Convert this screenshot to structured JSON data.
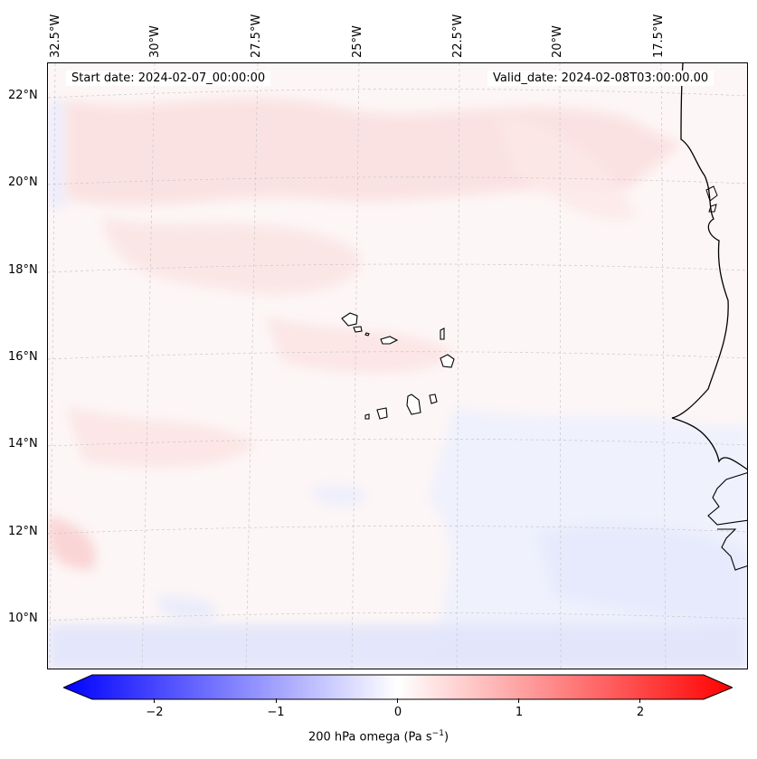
{
  "map": {
    "start_date_label": "Start date: 2024-02-07_00:00:00",
    "valid_date_label": "Valid_date: 2024-02-08T03:00:00.00",
    "lon_ticks": [
      "32.5°W",
      "30°W",
      "27.5°W",
      "25°W",
      "22.5°W",
      "20°W",
      "17.5°W"
    ],
    "lat_ticks": [
      "22°N",
      "20°N",
      "18°N",
      "16°N",
      "14°N",
      "12°N",
      "10°N"
    ],
    "extent": {
      "lon_min": -33.0,
      "lon_max": -15.5,
      "lat_min": 8.8,
      "lat_max": 22.8
    }
  },
  "colorbar": {
    "label_text": "200 hPa omega (Pa s",
    "label_sup": "−1",
    "label_close": ")",
    "ticks": [
      "−2",
      "−1",
      "0",
      "1",
      "2"
    ],
    "tick_values": [
      -2,
      -1,
      0,
      1,
      2
    ],
    "range": [
      -2.6,
      2.6
    ],
    "colors": {
      "negative": "#0000ff",
      "zero": "#ffffff",
      "positive": "#ff0000"
    }
  }
}
